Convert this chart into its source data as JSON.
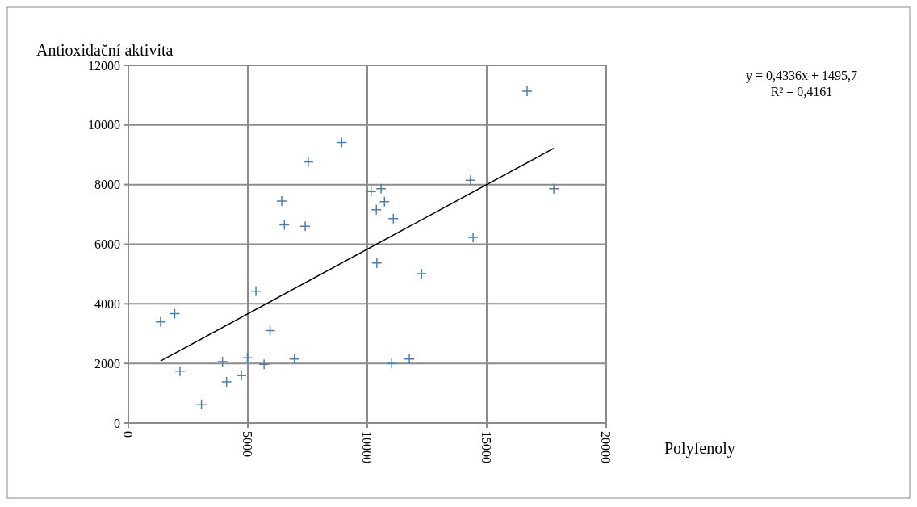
{
  "chart_data": {
    "type": "scatter",
    "xlabel": "Polyfenoly",
    "ylabel": "Antioxidační aktivita",
    "annotations": [
      "y = 0,4336x + 1495,7",
      "R² = 0,4161"
    ],
    "xlim": [
      0,
      20000
    ],
    "xticks": [
      0,
      5000,
      10000,
      15000,
      20000
    ],
    "ylim": [
      0,
      12000
    ],
    "yticks": [
      0,
      2000,
      4000,
      6000,
      8000,
      10000,
      12000
    ],
    "grid": true,
    "marker": "cross",
    "series": [
      {
        "color": "#4a7ebb",
        "x": [
          1350,
          1940,
          2160,
          3060,
          3940,
          4110,
          4730,
          4980,
          5340,
          5680,
          5930,
          6950,
          6530,
          6420,
          7400,
          7530,
          8930,
          10160,
          10580,
          10720,
          10380,
          11090,
          10400,
          12270,
          14320,
          14430,
          16690,
          17810,
          11020,
          11760
        ],
        "values": [
          3390,
          3670,
          1740,
          630,
          2060,
          1380,
          1590,
          2190,
          4420,
          1970,
          3100,
          2150,
          6650,
          7450,
          6600,
          8760,
          9410,
          7770,
          7860,
          7430,
          7160,
          6860,
          5370,
          5010,
          8150,
          6230,
          11130,
          7860,
          2000,
          2150
        ]
      },
      {
        "type": "line",
        "color": "#000000",
        "marker": "none",
        "line_style": "solid",
        "x": [
          1350,
          17810
        ],
        "values": [
          2080,
          9220
        ]
      }
    ]
  }
}
